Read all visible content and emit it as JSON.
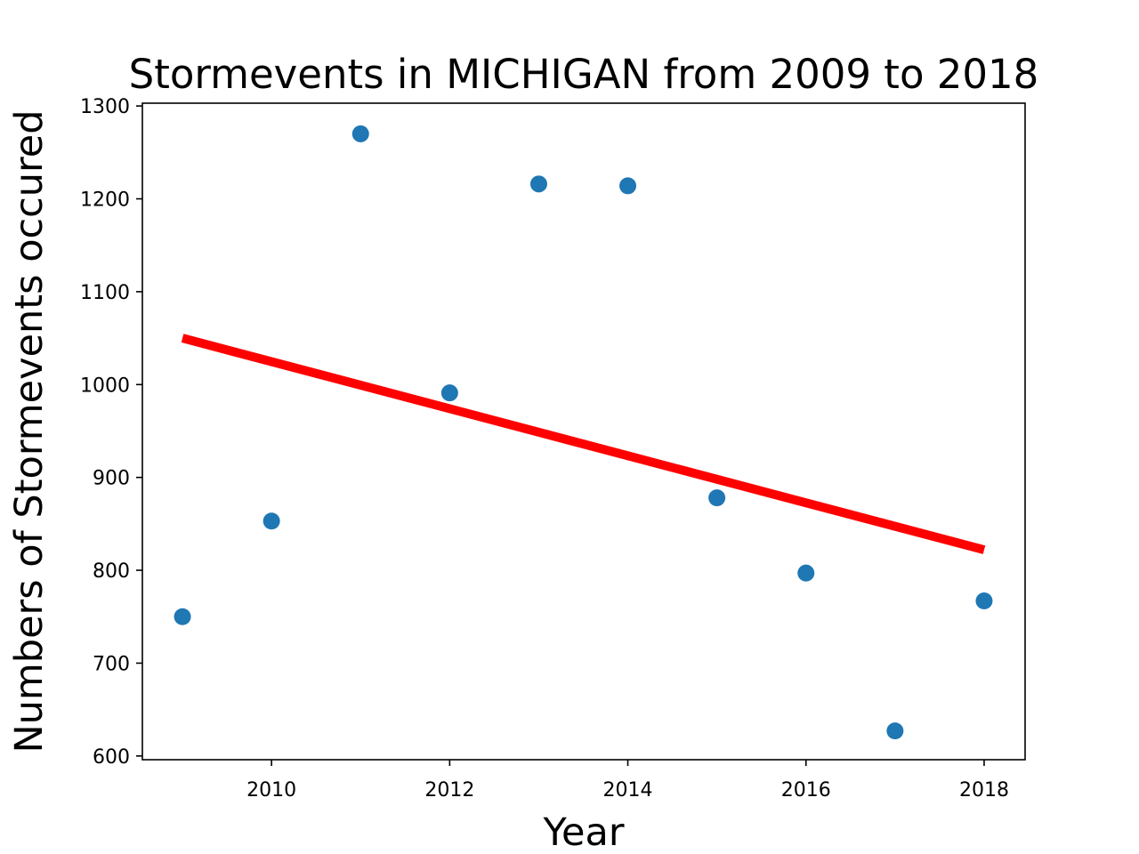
{
  "chart_data": {
    "type": "scatter",
    "title": "Stormevents in MICHIGAN from 2009 to 2018",
    "xlabel": "Year",
    "ylabel": "Numbers of Stormevents occured",
    "xlim": [
      2008.55,
      2018.46
    ],
    "ylim": [
      596,
      1303
    ],
    "x_ticks": [
      2010,
      2012,
      2014,
      2016,
      2018
    ],
    "y_ticks": [
      600,
      700,
      800,
      900,
      1000,
      1100,
      1200,
      1300
    ],
    "grid": false,
    "series": [
      {
        "kind": "scatter",
        "color": "#1f77b4",
        "x": [
          2009,
          2010,
          2011,
          2012,
          2013,
          2014,
          2015,
          2016,
          2017,
          2018
        ],
        "y": [
          750,
          853,
          1270,
          991,
          1216,
          1214,
          878,
          797,
          627,
          767
        ]
      },
      {
        "kind": "trend-line",
        "color": "#ff0000",
        "x": [
          2009,
          2018
        ],
        "y": [
          1050,
          822
        ]
      }
    ]
  }
}
